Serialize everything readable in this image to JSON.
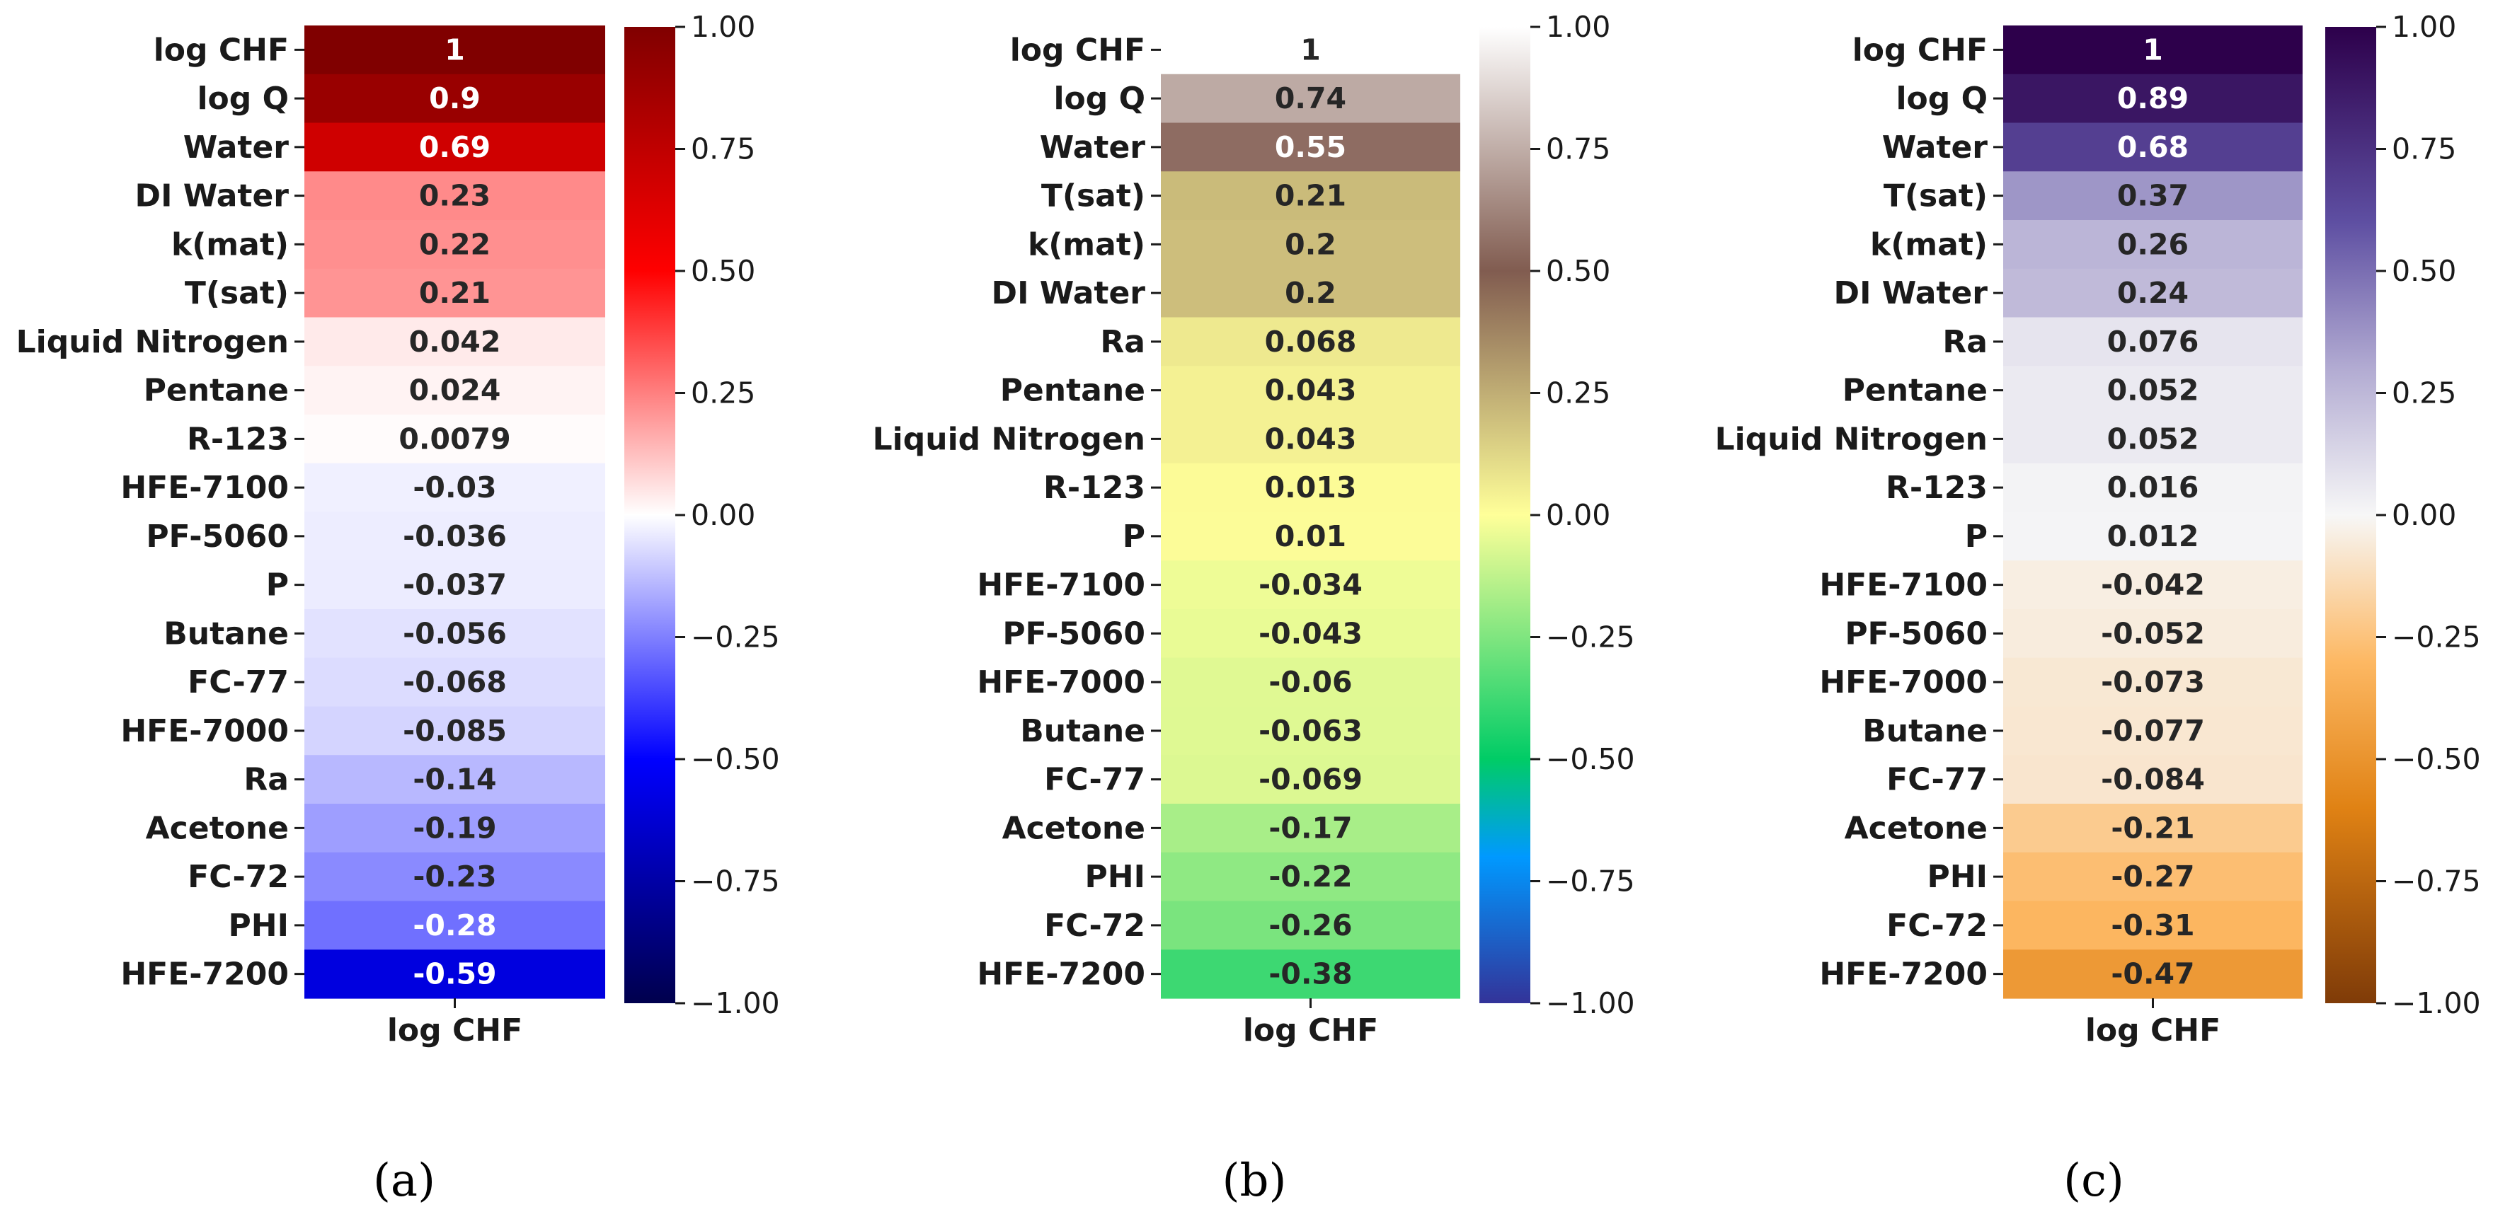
{
  "chart_data": [
    {
      "type": "heatmap",
      "panel_label": "(a)",
      "colormap": "seismic",
      "xlabel": "log CHF",
      "vmin": -1.0,
      "vmax": 1.0,
      "colorbar_ticks": [
        "1.00",
        "0.75",
        "0.50",
        "0.25",
        "0.00",
        "−0.25",
        "−0.50",
        "−0.75",
        "−1.00"
      ],
      "rows": [
        "log CHF",
        "log Q",
        "Water",
        "DI Water",
        "k(mat)",
        "T(sat)",
        "Liquid Nitrogen",
        "Pentane",
        "R-123",
        "HFE-7100",
        "PF-5060",
        "P",
        "Butane",
        "FC-77",
        "HFE-7000",
        "Ra",
        "Acetone",
        "FC-72",
        "PHI",
        "HFE-7200"
      ],
      "values": [
        1,
        0.9,
        0.69,
        0.23,
        0.22,
        0.21,
        0.042,
        0.024,
        0.0079,
        -0.03,
        -0.036,
        -0.037,
        -0.056,
        -0.068,
        -0.085,
        -0.14,
        -0.19,
        -0.23,
        -0.28,
        -0.59
      ],
      "value_labels": [
        "1",
        "0.9",
        "0.69",
        "0.23",
        "0.22",
        "0.21",
        "0.042",
        "0.024",
        "0.0079",
        "-0.03",
        "-0.036",
        "-0.037",
        "-0.056",
        "-0.068",
        "-0.085",
        "-0.14",
        "-0.19",
        "-0.23",
        "-0.28",
        "-0.59"
      ]
    },
    {
      "type": "heatmap",
      "panel_label": "(b)",
      "colormap": "terrain",
      "xlabel": "log CHF",
      "vmin": -1.0,
      "vmax": 1.0,
      "colorbar_ticks": [
        "1.00",
        "0.75",
        "0.50",
        "0.25",
        "0.00",
        "−0.25",
        "−0.50",
        "−0.75",
        "−1.00"
      ],
      "rows": [
        "log CHF",
        "log Q",
        "Water",
        "T(sat)",
        "k(mat)",
        "DI Water",
        "Ra",
        "Pentane",
        "Liquid Nitrogen",
        "R-123",
        "P",
        "HFE-7100",
        "PF-5060",
        "HFE-7000",
        "Butane",
        "FC-77",
        "Acetone",
        "PHI",
        "FC-72",
        "HFE-7200"
      ],
      "values": [
        1,
        0.74,
        0.55,
        0.21,
        0.2,
        0.2,
        0.068,
        0.043,
        0.043,
        0.013,
        0.01,
        -0.034,
        -0.043,
        -0.06,
        -0.063,
        -0.069,
        -0.17,
        -0.22,
        -0.26,
        -0.38
      ],
      "value_labels": [
        "1",
        "0.74",
        "0.55",
        "0.21",
        "0.2",
        "0.2",
        "0.068",
        "0.043",
        "0.043",
        "0.013",
        "0.01",
        "-0.034",
        "-0.043",
        "-0.06",
        "-0.063",
        "-0.069",
        "-0.17",
        "-0.22",
        "-0.26",
        "-0.38"
      ]
    },
    {
      "type": "heatmap",
      "panel_label": "(c)",
      "colormap": "PuOr",
      "xlabel": "log CHF",
      "vmin": -1.0,
      "vmax": 1.0,
      "colorbar_ticks": [
        "1.00",
        "0.75",
        "0.50",
        "0.25",
        "0.00",
        "−0.25",
        "−0.50",
        "−0.75",
        "−1.00"
      ],
      "rows": [
        "log CHF",
        "log Q",
        "Water",
        "T(sat)",
        "k(mat)",
        "DI Water",
        "Ra",
        "Pentane",
        "Liquid Nitrogen",
        "R-123",
        "P",
        "HFE-7100",
        "PF-5060",
        "HFE-7000",
        "Butane",
        "FC-77",
        "Acetone",
        "PHI",
        "FC-72",
        "HFE-7200"
      ],
      "values": [
        1,
        0.89,
        0.68,
        0.37,
        0.26,
        0.24,
        0.076,
        0.052,
        0.052,
        0.016,
        0.012,
        -0.042,
        -0.052,
        -0.073,
        -0.077,
        -0.084,
        -0.21,
        -0.27,
        -0.31,
        -0.47
      ],
      "value_labels": [
        "1",
        "0.89",
        "0.68",
        "0.37",
        "0.26",
        "0.24",
        "0.076",
        "0.052",
        "0.052",
        "0.016",
        "0.012",
        "-0.042",
        "-0.052",
        "-0.073",
        "-0.077",
        "-0.084",
        "-0.21",
        "-0.27",
        "-0.31",
        "-0.47"
      ]
    }
  ]
}
